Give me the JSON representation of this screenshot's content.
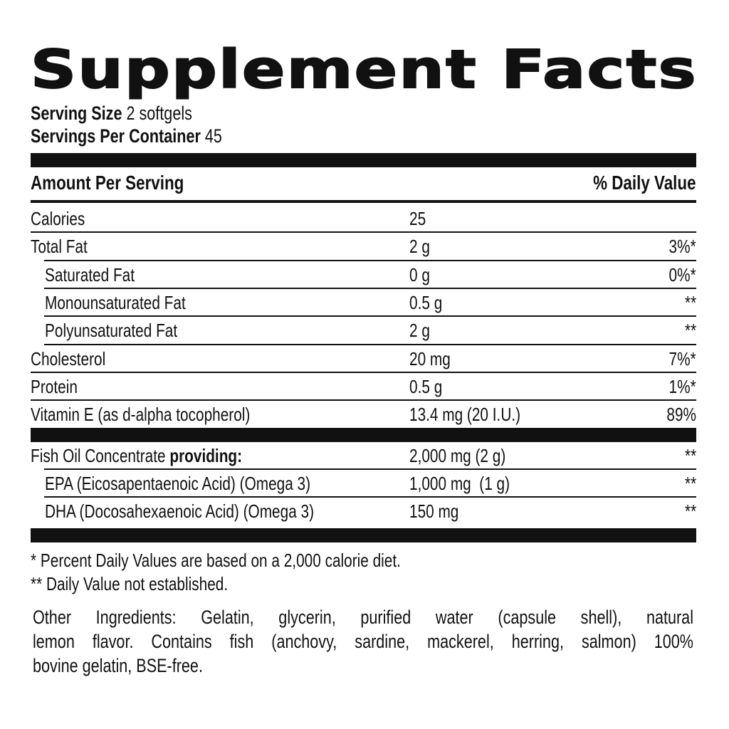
{
  "title": "Supplement Facts",
  "serving_size": {
    "label": "Serving Size",
    "value": "2 softgels"
  },
  "servings_per_container": {
    "label": "Servings Per Container",
    "value": "45"
  },
  "header": {
    "amount": "Amount Per Serving",
    "dv": "% Daily Value"
  },
  "rows": [
    {
      "name": "Calories",
      "amount": "25",
      "dv": ""
    },
    {
      "name": "Total Fat",
      "amount": "2 g",
      "dv": "3%*"
    },
    {
      "name": "Saturated Fat",
      "amount": "0 g",
      "dv": "0%*"
    },
    {
      "name": "Monounsaturated Fat",
      "amount": "0.5 g",
      "dv": "**"
    },
    {
      "name": "Polyunsaturated Fat",
      "amount": "2 g",
      "dv": "**"
    },
    {
      "name": "Cholesterol",
      "amount": "20 mg",
      "dv": "7%*"
    },
    {
      "name": "Protein",
      "amount": "0.5 g",
      "dv": "1%*"
    },
    {
      "name": "Vitamin E (as d-alpha tocopherol)",
      "amount": "13.4 mg (20 I.U.)",
      "dv": "89%"
    }
  ],
  "rows2": [
    {
      "name": "Fish Oil Concentrate",
      "name_bold": "providing:",
      "amount": "2,000 mg (2 g)",
      "dv": "**"
    },
    {
      "name": "EPA (Eicosapentaenoic Acid) (Omega 3)",
      "amount": "1,000 mg  (1 g)",
      "dv": "**"
    },
    {
      "name": "DHA (Docosahexaenoic Acid) (Omega 3)",
      "amount": "150 mg",
      "dv": "**"
    }
  ],
  "footnotes": [
    "* Percent Daily Values are based on a 2,000 calorie diet.",
    "** Daily Value not established."
  ],
  "other_ingredients": [
    "Other Ingredients: Gelatin, glycerin, purified water (capsule shell), natural",
    "lemon flavor. Contains fish (anchovy, sardine, mackerel, herring, salmon) 100%",
    "bovine gelatin, BSE-free."
  ]
}
